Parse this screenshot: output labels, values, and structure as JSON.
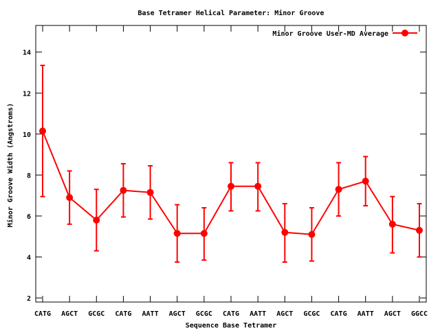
{
  "chart_data": {
    "type": "line",
    "title": "Base Tetramer Helical Parameter: Minor Groove",
    "xlabel": "Sequence Base Tetramer",
    "ylabel": "Minor Groove Width (Angstroms)",
    "categories": [
      "CATG",
      "AGCT",
      "GCGC",
      "CATG",
      "AATT",
      "AGCT",
      "GCGC",
      "CATG",
      "AATT",
      "AGCT",
      "GCGC",
      "CATG",
      "AATT",
      "AGCT",
      "GGCC"
    ],
    "yticks": [
      "2",
      "4",
      "6",
      "8",
      "10",
      "12",
      "14"
    ],
    "ylim": [
      1.8,
      15.3
    ],
    "grid": false,
    "legend_position": "top-right",
    "series": [
      {
        "name": "Minor Groove User-MD Average",
        "color": "#ff0000",
        "values": [
          10.15,
          6.9,
          5.8,
          7.25,
          7.15,
          5.15,
          5.15,
          7.45,
          7.45,
          5.2,
          5.1,
          7.3,
          7.7,
          5.6,
          5.3
        ],
        "error_low": [
          6.95,
          5.6,
          4.3,
          5.95,
          5.85,
          3.75,
          3.85,
          6.25,
          6.25,
          3.75,
          3.8,
          6.0,
          6.5,
          4.2,
          4.0
        ],
        "error_high": [
          13.35,
          8.2,
          7.3,
          8.55,
          8.45,
          6.55,
          6.4,
          8.6,
          8.6,
          6.6,
          6.4,
          8.6,
          8.9,
          6.95,
          6.6
        ]
      }
    ]
  }
}
